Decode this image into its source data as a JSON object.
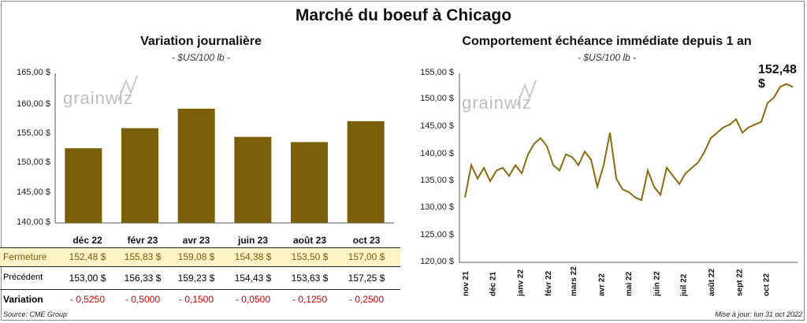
{
  "main_title": "Marché du boeuf à Chicago",
  "watermark": "grainwiz",
  "left_chart": {
    "title": "Variation journalière",
    "subtitle": "- $US/100 lb -",
    "y_ticks": [
      "165,00 $",
      "160,00 $",
      "155,00 $",
      "150,00 $",
      "145,00 $",
      "140,00 $"
    ],
    "rows": {
      "fermeture_label": "Fermeture",
      "precedent_label": "Précédent",
      "variation_label": "Variation",
      "fermeture": [
        "152,48  $",
        "155,83  $",
        "159,08  $",
        "154,38  $",
        "153,50  $",
        "157,00  $"
      ],
      "precedent": [
        "153,00  $",
        "156,33  $",
        "159,23  $",
        "154,43  $",
        "153,63  $",
        "157,25  $"
      ],
      "variation": [
        "- 0,5250",
        "- 0,5000",
        "- 0,1500",
        "- 0,0500",
        "- 0,1250",
        "- 0,2500"
      ]
    }
  },
  "right_chart": {
    "title": "Comportement  échéance immédiate depuis 1 an",
    "subtitle": "- $US/100 lb -",
    "y_ticks": [
      "155,00 $",
      "150,00 $",
      "145,00 $",
      "140,00 $",
      "135,00 $",
      "130,00 $",
      "125,00 $",
      "120,00 $"
    ],
    "x_ticks": [
      "nov 21",
      "déc 21",
      "janv 22",
      "févr 22",
      "mars 22",
      "avr 22",
      "mai 22",
      "juin 22",
      "juil 22",
      "août 22",
      "sept 22",
      "oct 22"
    ],
    "last_label": "152,48 $"
  },
  "footer": {
    "source": "Source: CME Group",
    "update": "Mise à jour: lun 31 oct 2022"
  },
  "colors": {
    "bar": "#7a5e0a",
    "line": "#8a6a12",
    "highlight_row": "#fdf1c6",
    "negative": "#d00000"
  },
  "chart_data": [
    {
      "type": "bar",
      "title": "Variation journalière",
      "ylabel": "$US/100 lb",
      "categories": [
        "déc 22",
        "févr 23",
        "avr 23",
        "juin 23",
        "août 23",
        "oct 23"
      ],
      "values": [
        152.48,
        155.83,
        159.08,
        154.38,
        153.5,
        157.0
      ],
      "ylim": [
        140,
        165
      ],
      "grid": false
    },
    {
      "type": "line",
      "title": "Comportement  échéance immédiate depuis 1 an",
      "ylabel": "$US/100 lb",
      "x": [
        "2021-11-01",
        "2021-11-08",
        "2021-11-15",
        "2021-11-22",
        "2021-11-29",
        "2021-12-06",
        "2021-12-13",
        "2021-12-20",
        "2021-12-27",
        "2022-01-03",
        "2022-01-10",
        "2022-01-17",
        "2022-01-24",
        "2022-01-31",
        "2022-02-07",
        "2022-02-14",
        "2022-02-21",
        "2022-02-28",
        "2022-03-07",
        "2022-03-14",
        "2022-03-21",
        "2022-03-28",
        "2022-04-04",
        "2022-04-11",
        "2022-04-18",
        "2022-04-25",
        "2022-05-02",
        "2022-05-09",
        "2022-05-16",
        "2022-05-23",
        "2022-05-30",
        "2022-06-06",
        "2022-06-13",
        "2022-06-20",
        "2022-06-27",
        "2022-07-04",
        "2022-07-11",
        "2022-07-18",
        "2022-07-25",
        "2022-08-01",
        "2022-08-08",
        "2022-08-15",
        "2022-08-22",
        "2022-08-29",
        "2022-09-05",
        "2022-09-12",
        "2022-09-19",
        "2022-09-26",
        "2022-10-03",
        "2022-10-10",
        "2022-10-17",
        "2022-10-24",
        "2022-10-31"
      ],
      "values": [
        132.0,
        138.0,
        135.5,
        137.5,
        135.0,
        137.0,
        137.5,
        136.0,
        138.0,
        136.5,
        140.0,
        142.0,
        143.0,
        141.5,
        138.0,
        137.0,
        140.0,
        139.5,
        138.0,
        140.5,
        139.0,
        134.0,
        138.0,
        144.0,
        135.5,
        133.5,
        133.0,
        132.0,
        131.5,
        137.0,
        134.0,
        132.5,
        137.5,
        136.0,
        134.5,
        136.5,
        137.5,
        138.5,
        140.5,
        143.0,
        144.0,
        145.0,
        145.5,
        146.5,
        144.0,
        145.0,
        145.5,
        146.0,
        149.5,
        150.5,
        152.5,
        153.0,
        152.48
      ],
      "ylim": [
        120,
        155
      ],
      "grid": false
    }
  ]
}
